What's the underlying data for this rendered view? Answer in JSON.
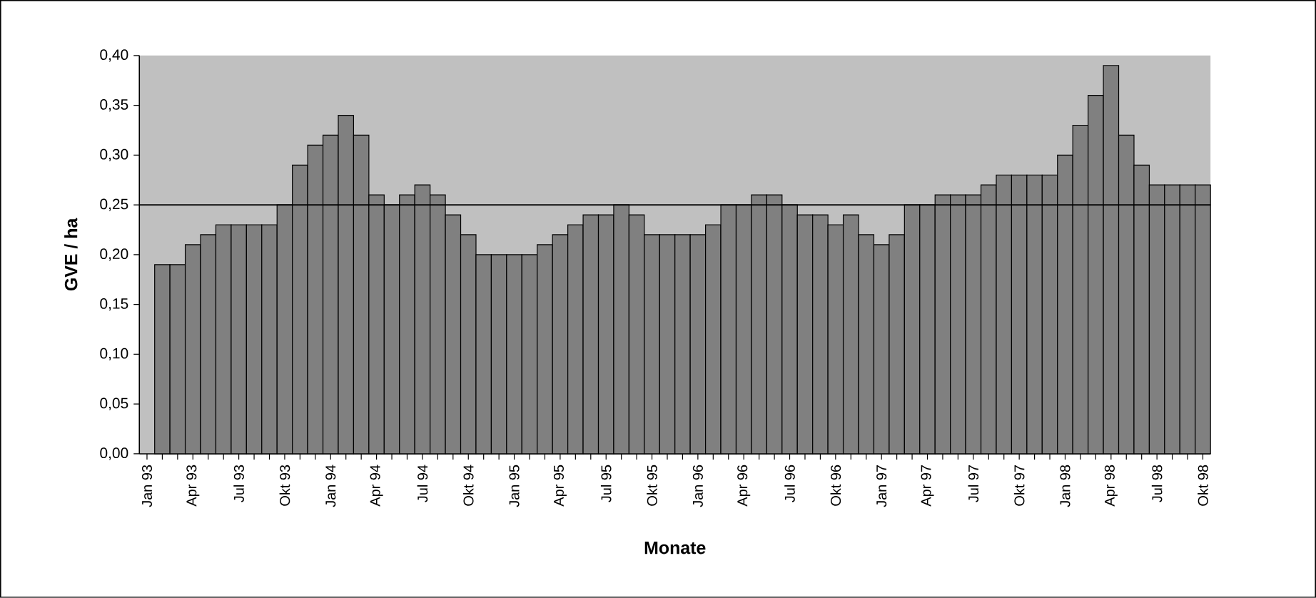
{
  "chart_data": {
    "type": "bar",
    "xlabel": "Monate",
    "ylabel": "GVE / ha",
    "categories": [
      "Jan 93",
      null,
      null,
      "Apr 93",
      null,
      null,
      "Jul 93",
      null,
      null,
      "Okt 93",
      null,
      null,
      "Jan 94",
      null,
      null,
      "Apr 94",
      null,
      null,
      "Jul 94",
      null,
      null,
      "Okt 94",
      null,
      null,
      "Jan 95",
      null,
      null,
      "Apr 95",
      null,
      null,
      "Jul 95",
      null,
      null,
      "Okt 95",
      null,
      null,
      "Jan 96",
      null,
      null,
      "Apr 96",
      null,
      null,
      "Jul 96",
      null,
      null,
      "Okt 96",
      null,
      null,
      "Jan 97",
      null,
      null,
      "Apr 97",
      null,
      null,
      "Jul 97",
      null,
      null,
      "Okt 97",
      null,
      null,
      "Jan 98",
      null,
      null,
      "Apr 98",
      null,
      null,
      "Jul 98",
      null,
      null,
      "Okt 98"
    ],
    "values": [
      null,
      0.19,
      0.19,
      0.21,
      0.22,
      0.23,
      0.23,
      0.23,
      0.23,
      0.25,
      0.29,
      0.31,
      0.32,
      0.34,
      0.32,
      0.26,
      0.25,
      0.26,
      0.27,
      0.26,
      0.24,
      0.22,
      0.2,
      0.2,
      0.2,
      0.2,
      0.21,
      0.22,
      0.23,
      0.24,
      0.24,
      0.25,
      0.24,
      0.22,
      0.22,
      0.22,
      0.22,
      0.23,
      0.25,
      0.25,
      0.26,
      0.26,
      0.25,
      0.24,
      0.24,
      0.23,
      0.24,
      0.22,
      0.21,
      0.22,
      0.25,
      0.25,
      0.26,
      0.26,
      0.26,
      0.27,
      0.28,
      0.28,
      0.28,
      0.28,
      0.3,
      0.33,
      0.36,
      0.39,
      0.32,
      0.29,
      0.27,
      0.27,
      0.27,
      0.27
    ],
    "color": "#808080",
    "ylim": [
      0,
      0.4
    ],
    "yticks": [
      {
        "value": 0,
        "label": "0,00"
      },
      {
        "value": 0.05,
        "label": "0,05"
      },
      {
        "value": 0.1,
        "label": "0,10"
      },
      {
        "value": 0.15,
        "label": "0,15"
      },
      {
        "value": 0.2,
        "label": "0,20"
      },
      {
        "value": 0.25,
        "label": "0,25"
      },
      {
        "value": 0.3,
        "label": "0,30"
      },
      {
        "value": 0.35,
        "label": "0,35"
      },
      {
        "value": 0.4,
        "label": "0,40"
      }
    ],
    "ref_lines": [
      {
        "axis": "y",
        "value": 0.25,
        "color": "#000000"
      }
    ]
  }
}
